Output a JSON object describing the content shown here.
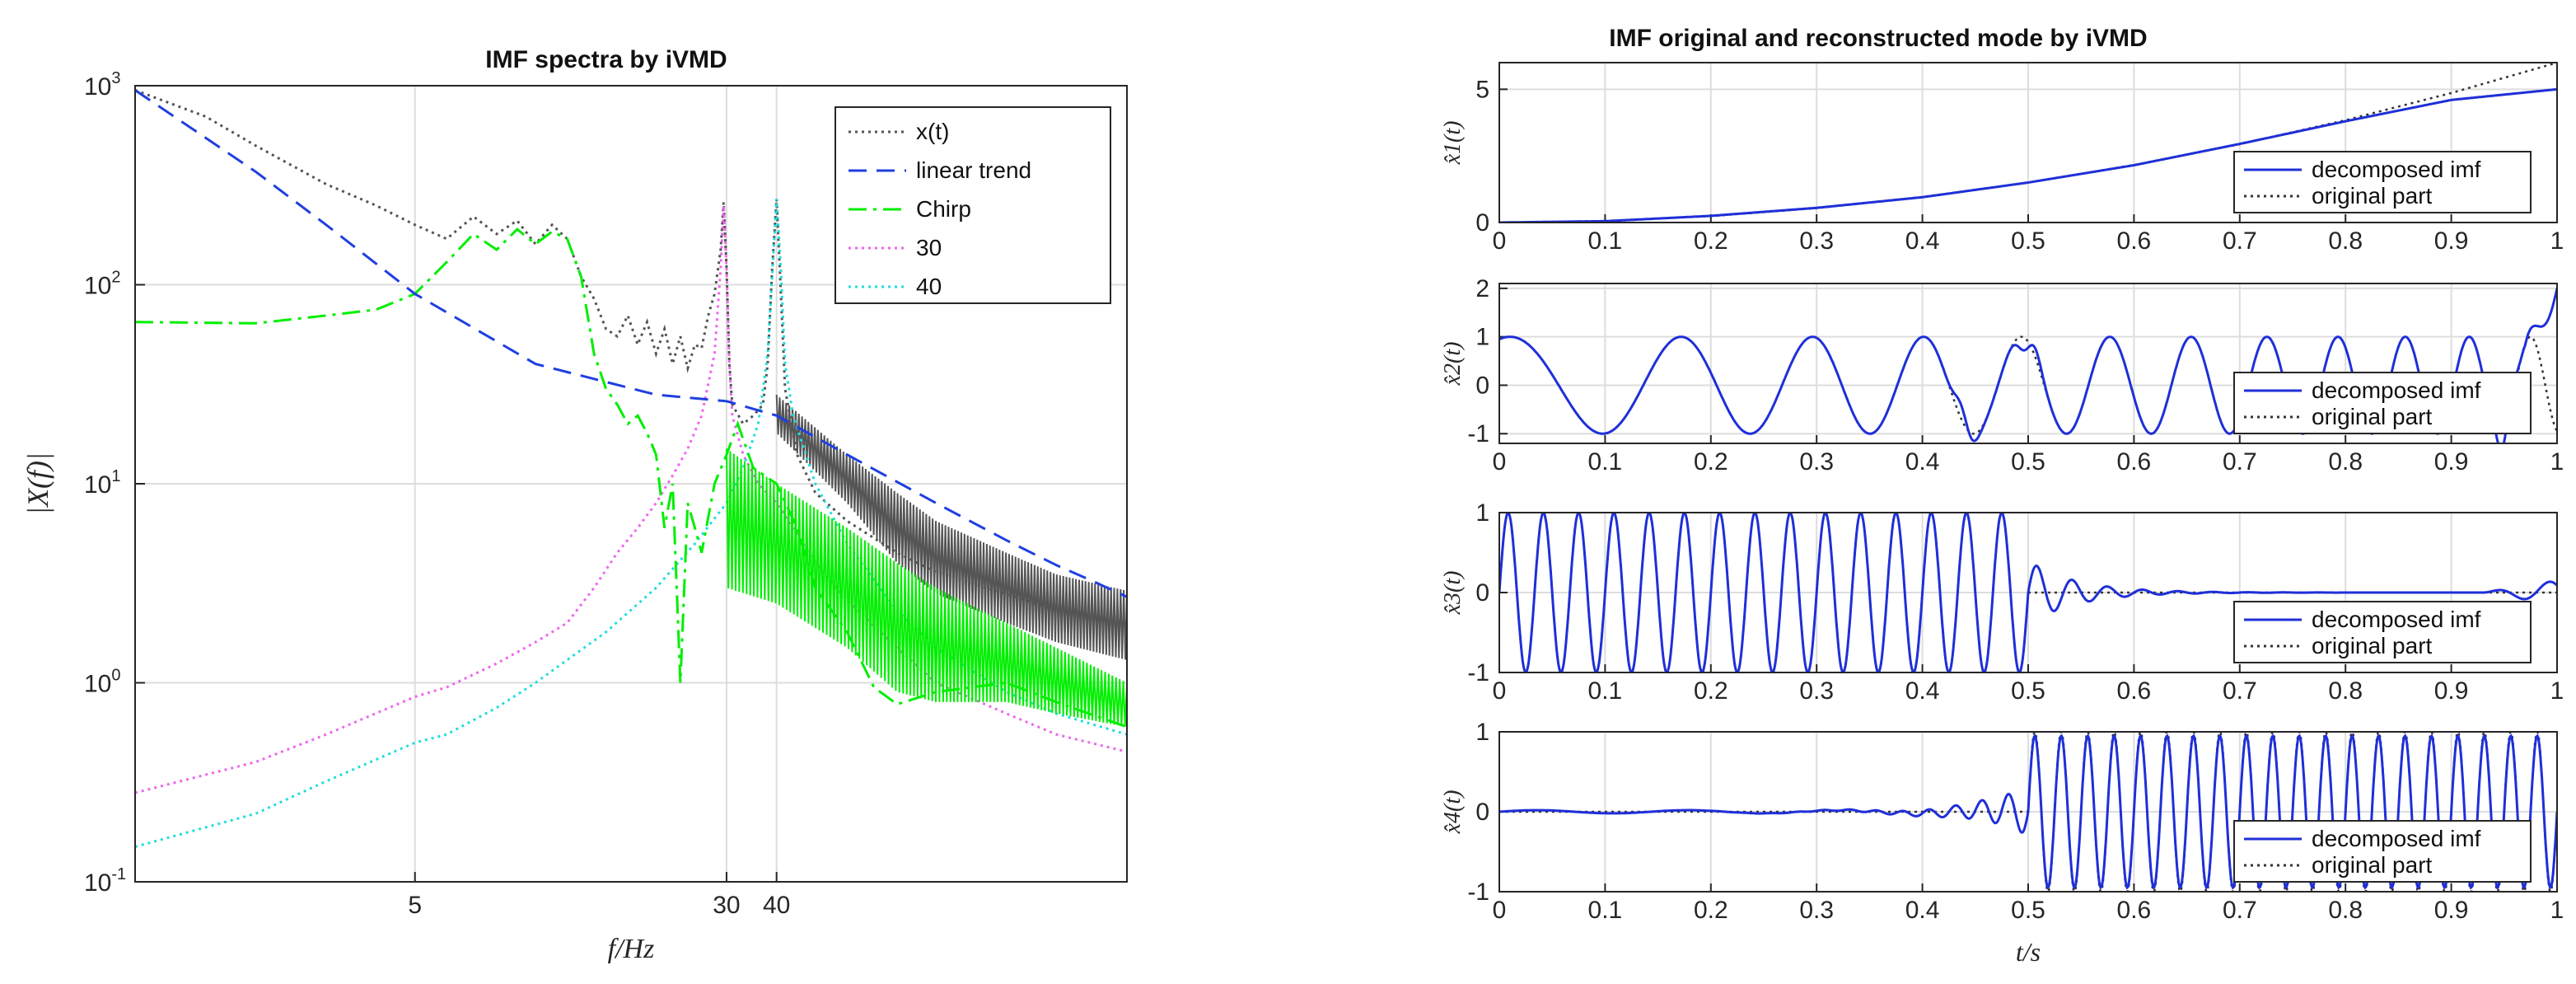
{
  "chart_data": [
    {
      "type": "line",
      "title": "IMF spectra by iVMD",
      "xlabel": "f/Hz",
      "ylabel": "|X(f)|",
      "xscale": "log",
      "yscale": "log",
      "xlim": [
        1,
        300
      ],
      "ylim": [
        0.1,
        1000
      ],
      "xticks": [
        5,
        30,
        40
      ],
      "xticklabels": [
        "5",
        "30",
        "40"
      ],
      "yticks": [
        0.1,
        1,
        10,
        100,
        1000
      ],
      "yticklabels": [
        [
          "10",
          "-1"
        ],
        [
          "10",
          "0"
        ],
        [
          "10",
          "1"
        ],
        [
          "10",
          "2"
        ],
        [
          "10",
          "3"
        ]
      ],
      "grid": true,
      "legend_position": "top-right",
      "series": [
        {
          "name": "x(t)",
          "color": "#555555",
          "style": "dotted",
          "x": [
            1,
            1.5,
            2,
            3,
            4,
            5,
            6,
            7,
            8,
            9,
            10,
            11,
            12,
            13,
            14,
            15,
            16,
            17,
            18,
            19,
            20,
            21,
            22,
            23,
            24,
            25,
            26,
            27,
            28,
            29,
            29.5,
            30,
            30.5,
            31,
            33,
            35,
            37,
            38,
            39,
            40,
            41,
            42,
            45,
            50,
            60,
            80,
            100,
            150,
            200,
            300
          ],
          "y": [
            950,
            700,
            500,
            320,
            250,
            200,
            170,
            220,
            180,
            210,
            160,
            200,
            170,
            110,
            85,
            60,
            55,
            70,
            50,
            65,
            45,
            60,
            40,
            55,
            38,
            50,
            48,
            70,
            90,
            150,
            260,
            120,
            40,
            25,
            20,
            22,
            25,
            40,
            120,
            270,
            90,
            30,
            14,
            9,
            6.5,
            4.5,
            3.6,
            2.8,
            2.3,
            2.0
          ],
          "band": {
            "x": [
              40,
              60,
              80,
              100,
              150,
              200,
              300
            ],
            "low": [
              18,
              8,
              4,
              2.8,
              2,
              1.6,
              1.3
            ],
            "high": [
              28,
              14,
              9,
              6.5,
              4.5,
              3.5,
              2.9
            ]
          }
        },
        {
          "name": "linear trend",
          "color": "#1f3fe0",
          "style": "dashed",
          "x": [
            1,
            2,
            3,
            5,
            10,
            20,
            30,
            40,
            60,
            100,
            150,
            200,
            250,
            300
          ],
          "y": [
            950,
            370,
            200,
            90,
            40,
            28,
            26,
            22,
            14,
            8,
            5.2,
            3.9,
            3.2,
            2.7
          ]
        },
        {
          "name": "Chirp",
          "color": "#00ee00",
          "style": "dashdot",
          "x": [
            1,
            2,
            3,
            4,
            5,
            6,
            7,
            8,
            9,
            10,
            11,
            12,
            13,
            14,
            15,
            16,
            17,
            18,
            19,
            20,
            21,
            22,
            23,
            24,
            25,
            26,
            28,
            30,
            32,
            35,
            40,
            45,
            50,
            60,
            70,
            80,
            100,
            150,
            200,
            300
          ],
          "y": [
            65,
            64,
            70,
            75,
            90,
            130,
            180,
            150,
            190,
            160,
            185,
            170,
            110,
            45,
            30,
            25,
            20,
            22,
            18,
            14,
            6,
            10,
            1.0,
            8,
            6,
            4.5,
            10,
            14,
            20,
            12,
            10,
            6,
            3.0,
            1.8,
            0.95,
            0.78,
            0.9,
            1.0,
            0.8,
            0.6
          ],
          "band": {
            "x": [
              30,
              40,
              60,
              80,
              100,
              150,
              200,
              300
            ],
            "low": [
              3,
              2.5,
              1.5,
              0.9,
              0.8,
              0.8,
              0.7,
              0.6
            ],
            "high": [
              15,
              10,
              6,
              4,
              3,
              2,
              1.5,
              1.0
            ]
          }
        },
        {
          "name": "30",
          "color": "#ee66ee",
          "style": "dotted",
          "x": [
            1,
            2,
            3,
            5,
            6,
            8,
            10,
            12,
            14,
            16,
            18,
            20,
            22,
            24,
            26,
            28,
            29,
            29.5,
            30,
            30.5,
            31,
            33,
            36,
            40,
            50,
            60,
            80,
            100,
            150,
            200,
            300
          ],
          "y": [
            0.28,
            0.4,
            0.55,
            0.85,
            0.95,
            1.25,
            1.6,
            2.0,
            3.0,
            4.5,
            6,
            8,
            11,
            15,
            22,
            45,
            120,
            250,
            120,
            40,
            22,
            14,
            10,
            8,
            4.0,
            2.6,
            1.5,
            1.0,
            0.7,
            0.55,
            0.45
          ]
        },
        {
          "name": "40",
          "color": "#22dddd",
          "style": "dotted",
          "x": [
            1,
            2,
            3,
            5,
            6,
            8,
            10,
            15,
            20,
            25,
            30,
            33,
            36,
            38,
            39,
            40,
            41,
            42,
            44,
            50,
            60,
            80,
            100,
            150,
            200,
            300
          ],
          "y": [
            0.15,
            0.22,
            0.32,
            0.5,
            0.55,
            0.75,
            1.0,
            1.8,
            3.0,
            5,
            8,
            12,
            20,
            45,
            110,
            270,
            120,
            40,
            22,
            10,
            5,
            2.3,
            1.5,
            0.9,
            0.7,
            0.55
          ]
        }
      ]
    },
    {
      "type": "line",
      "title": "IMF original and reconstructed mode by iVMD",
      "xlabel": "t/s",
      "xlim": [
        0,
        1
      ],
      "xticklabels": [
        "0",
        "0.1",
        "0.2",
        "0.3",
        "0.4",
        "0.5",
        "0.6",
        "0.7",
        "0.8",
        "0.9",
        "1"
      ],
      "legend_entries": [
        "decomposed imf",
        "original part"
      ],
      "legend_position": "bottom-right",
      "subplots": [
        {
          "ylabel": "x̂1(t)",
          "ylim": [
            0,
            6
          ],
          "yticklabels": [
            "0",
            "5"
          ],
          "grid": true,
          "decomposed": {
            "kind": "poly",
            "t": [
              0,
              0.1,
              0.2,
              0.3,
              0.4,
              0.5,
              0.6,
              0.7,
              0.8,
              0.9,
              1.0
            ],
            "y": [
              0,
              0.05,
              0.25,
              0.55,
              0.95,
              1.5,
              2.15,
              2.95,
              3.8,
              4.6,
              5.0
            ]
          },
          "original": {
            "kind": "poly",
            "t": [
              0,
              0.1,
              0.2,
              0.3,
              0.4,
              0.5,
              0.6,
              0.7,
              0.8,
              0.9,
              1.0
            ],
            "y": [
              0,
              0.06,
              0.24,
              0.54,
              0.96,
              1.5,
              2.16,
              2.94,
              3.84,
              4.86,
              6.0
            ]
          }
        },
        {
          "ylabel": "x̂2(t)",
          "ylim": [
            -1.2,
            2.1
          ],
          "yticklabels": [
            "-1",
            "0",
            "1",
            "2"
          ],
          "grid": true,
          "decomposed": {
            "kind": "chirp",
            "amp": 1.0,
            "f0": 5,
            "f1": 18,
            "cut_start": 0,
            "cut_end": 1,
            "distort_at": [
              0.44,
              0.5,
              0.95
            ],
            "end_value": 2.0
          },
          "original": {
            "kind": "chirp",
            "amp": 1.0,
            "f0": 5,
            "f1": 18,
            "cut_start": 0,
            "cut_end": 1
          }
        },
        {
          "ylabel": "x̂3(t)",
          "ylim": [
            -1,
            1
          ],
          "yticklabels": [
            "-1",
            "0",
            "1"
          ],
          "grid": true,
          "decomposed": {
            "kind": "burst",
            "amp": 1.0,
            "freq": 30,
            "on_start": 0,
            "on_end": 0.5,
            "decay": 0.045,
            "end_ripple": 0.15
          },
          "original": {
            "kind": "burst",
            "amp": 1.0,
            "freq": 30,
            "on_start": 0,
            "on_end": 0.5,
            "decay": 0
          }
        },
        {
          "ylabel": "x̂4(t)",
          "ylim": [
            -1,
            1
          ],
          "yticklabels": [
            "-1",
            "0",
            "1"
          ],
          "grid": true,
          "decomposed": {
            "kind": "burst",
            "amp": 0.95,
            "freq": 40,
            "on_start": 0.5,
            "on_end": 1.0,
            "pre_growth": 0.02
          },
          "original": {
            "kind": "burst",
            "amp": 1.0,
            "freq": 40,
            "on_start": 0.5,
            "on_end": 1.0
          }
        }
      ]
    }
  ]
}
